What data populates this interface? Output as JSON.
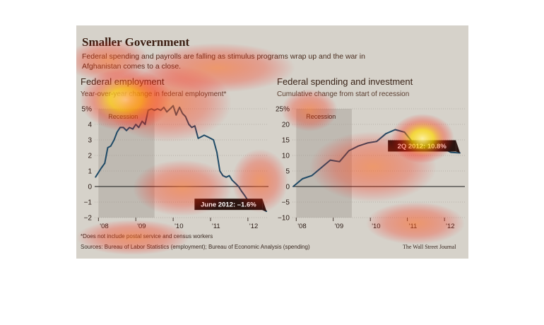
{
  "title": "Smaller Government",
  "subtitle": "Federal spending and payrolls are falling as stimulus programs wrap up and the war in Afghanistan comes to a close.",
  "footnote": "*Does not include postal service and census workers",
  "sources": "Sources: Bureau of Labor Statistics (employment); Bureau of Economic Analysis (spending)",
  "credit": "The Wall Street Journal",
  "colors": {
    "line": "#1f4a66",
    "callout_bg": "#2a1410",
    "recession_band": "#bfbab2",
    "background": "#d6d2ca"
  },
  "chart_data": [
    {
      "type": "line",
      "title": "Federal employment",
      "subtitle": "Year-over-year change in federal employment*",
      "x_ticks": [
        "'08",
        "'09",
        "'10",
        "'11",
        "'12"
      ],
      "x_range": [
        2007.9,
        2012.55
      ],
      "y_ticks": [
        "5%",
        "4",
        "3",
        "2",
        "1",
        "0",
        "−1",
        "−2"
      ],
      "y_tick_values": [
        5,
        4,
        3,
        2,
        1,
        0,
        -1,
        -2
      ],
      "ylim": [
        -2,
        5
      ],
      "recession_label": "Recession",
      "recession_range": [
        2008.0,
        2009.5
      ],
      "callout": "June 2012: –1.6%",
      "series": [
        {
          "x": [
            2007.92,
            2008.0,
            2008.08,
            2008.17,
            2008.25,
            2008.33,
            2008.42,
            2008.5,
            2008.58,
            2008.67,
            2008.75,
            2008.83,
            2008.92,
            2009.0,
            2009.08,
            2009.17,
            2009.25,
            2009.33,
            2009.42,
            2009.5,
            2009.58,
            2009.67,
            2009.75,
            2009.83,
            2009.92,
            2010.0,
            2010.08,
            2010.17,
            2010.25,
            2010.33,
            2010.42,
            2010.5,
            2010.58,
            2010.67,
            2010.75,
            2010.83,
            2010.92,
            2011.0,
            2011.08,
            2011.17,
            2011.25,
            2011.33,
            2011.42,
            2011.5,
            2011.58,
            2011.67,
            2011.75,
            2011.83,
            2011.92,
            2012.0,
            2012.08,
            2012.17,
            2012.25,
            2012.33,
            2012.42,
            2012.5
          ],
          "y": [
            0.6,
            0.9,
            1.2,
            1.5,
            2.5,
            2.6,
            3.0,
            3.5,
            3.8,
            3.8,
            3.6,
            3.8,
            3.7,
            4.0,
            3.8,
            4.2,
            4.0,
            4.9,
            5.0,
            4.9,
            5.0,
            4.9,
            5.1,
            4.8,
            5.0,
            5.2,
            4.6,
            5.1,
            4.7,
            4.5,
            4.0,
            3.8,
            3.9,
            3.1,
            3.2,
            3.3,
            3.2,
            3.1,
            3.0,
            2.2,
            1.0,
            0.7,
            0.6,
            0.7,
            0.4,
            0.2,
            0.0,
            -0.3,
            -0.6,
            -0.9,
            -1.1,
            -1.2,
            -1.3,
            -1.4,
            -1.5,
            -1.6
          ]
        }
      ]
    },
    {
      "type": "line",
      "title": "Federal spending and investment",
      "subtitle": "Cumulative change from start of recession",
      "x_ticks": [
        "'08",
        "'09",
        "'10",
        "'11",
        "'12"
      ],
      "x_range": [
        2007.9,
        2012.55
      ],
      "y_ticks": [
        "25%",
        "20",
        "15",
        "10",
        "5",
        "0",
        "−5",
        "−10"
      ],
      "y_tick_values": [
        25,
        20,
        15,
        10,
        5,
        0,
        -5,
        -10
      ],
      "ylim": [
        -10,
        25
      ],
      "recession_label": "Recession",
      "recession_range": [
        2008.0,
        2009.5
      ],
      "callout": "2Q 2012: 10.8%",
      "series": [
        {
          "x": [
            2007.92,
            2008.17,
            2008.42,
            2008.67,
            2008.92,
            2009.17,
            2009.42,
            2009.67,
            2009.92,
            2010.17,
            2010.42,
            2010.67,
            2010.92,
            2011.17,
            2011.42,
            2011.67,
            2011.92,
            2012.17,
            2012.42
          ],
          "y": [
            0.0,
            2.5,
            3.5,
            6.0,
            8.5,
            8.0,
            11.5,
            13.0,
            14.0,
            14.5,
            17.0,
            18.3,
            17.5,
            13.8,
            14.5,
            13.5,
            12.5,
            11.0,
            10.8
          ]
        }
      ]
    }
  ]
}
